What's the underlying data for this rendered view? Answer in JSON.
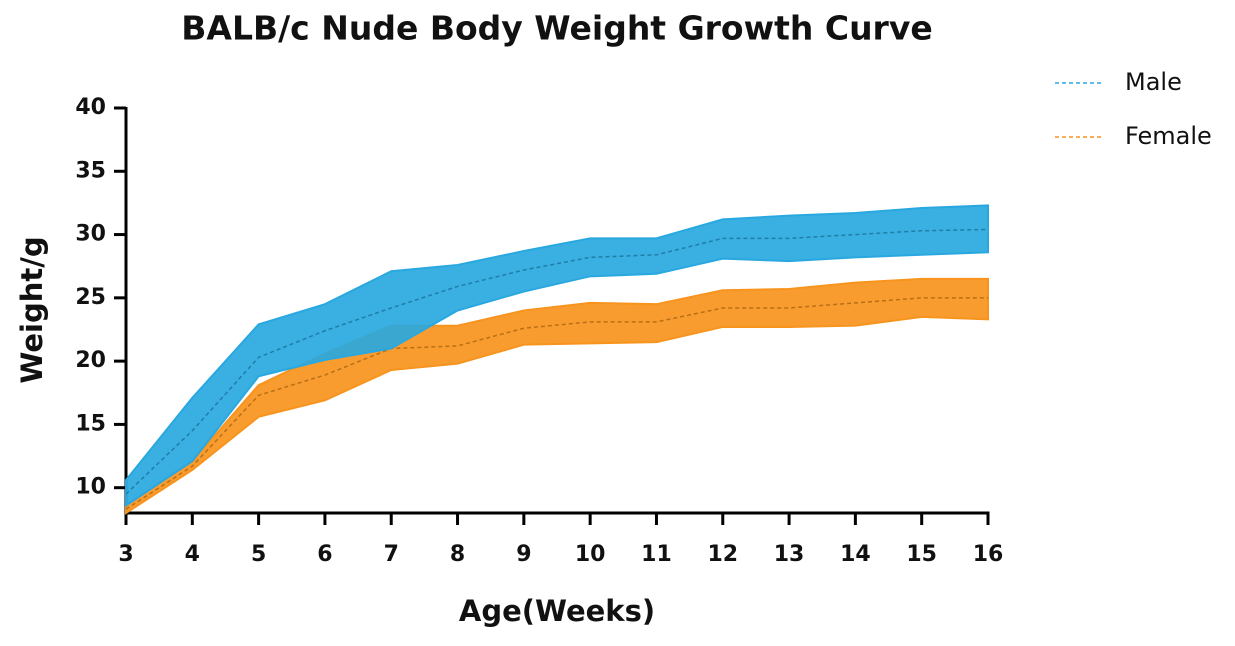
{
  "chart_data": {
    "type": "line",
    "title": "BALB/c Nude Body Weight Growth Curve",
    "x_label": "Age(Weeks)",
    "y_label": "Weight/g",
    "x": [
      3,
      4,
      5,
      6,
      7,
      8,
      9,
      10,
      11,
      12,
      13,
      14,
      15,
      16
    ],
    "xlim": [
      3,
      16
    ],
    "xticks": [
      3,
      4,
      5,
      6,
      7,
      8,
      9,
      10,
      11,
      12,
      13,
      14,
      15,
      16
    ],
    "ylim": [
      8,
      40
    ],
    "yticks": [
      10,
      15,
      20,
      25,
      30,
      35,
      40
    ],
    "legend": "upper right",
    "series": [
      {
        "name": "Female",
        "color": "#f7941d",
        "values": [
          8.3,
          11.7,
          17.3,
          18.9,
          21.0,
          21.2,
          22.6,
          23.1,
          23.1,
          24.2,
          24.2,
          24.6,
          25.0,
          25.0
        ],
        "upper": [
          8.6,
          12.1,
          18.1,
          20.6,
          22.8,
          22.8,
          24.0,
          24.6,
          24.5,
          25.6,
          25.7,
          26.2,
          26.5,
          26.5
        ],
        "lower": [
          8.0,
          11.4,
          15.6,
          16.9,
          19.3,
          19.8,
          21.3,
          21.4,
          21.5,
          22.7,
          22.7,
          22.8,
          23.5,
          23.3
        ]
      },
      {
        "name": "Male",
        "color": "#29a8e0",
        "values": [
          9.5,
          14.5,
          20.3,
          22.4,
          24.2,
          25.9,
          27.2,
          28.2,
          28.4,
          29.7,
          29.7,
          30.0,
          30.3,
          30.4
        ],
        "upper": [
          10.6,
          17.1,
          22.9,
          24.5,
          27.1,
          27.6,
          28.7,
          29.7,
          29.7,
          31.2,
          31.5,
          31.7,
          32.1,
          32.3
        ],
        "lower": [
          8.6,
          12.1,
          18.8,
          20.1,
          21.0,
          24.0,
          25.5,
          26.7,
          26.9,
          28.1,
          27.9,
          28.2,
          28.4,
          28.6
        ]
      }
    ]
  }
}
